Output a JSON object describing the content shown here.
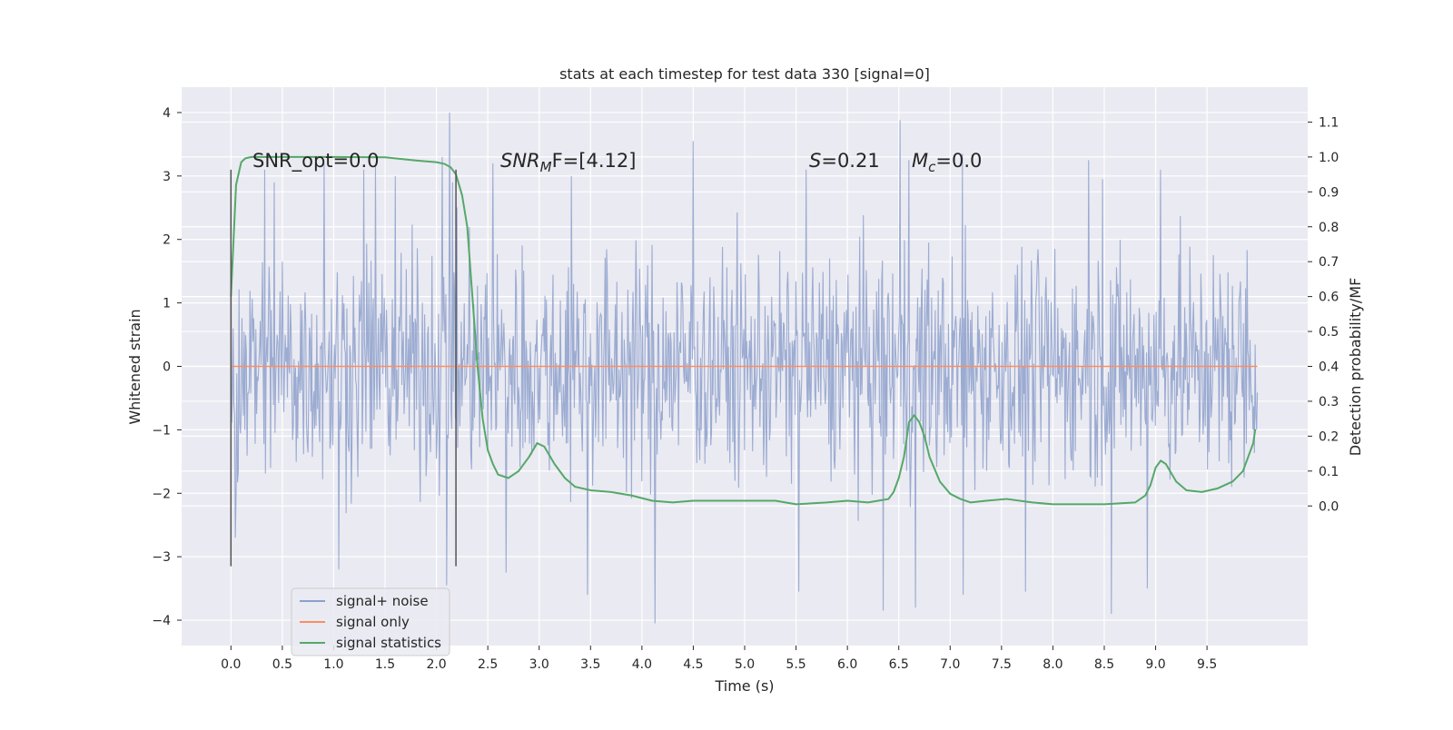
{
  "chart_data": {
    "type": "line",
    "title": "stats at each timestep for test data 330 [signal=0]",
    "xlabel": "Time (s)",
    "ylabel": "Whitened strain",
    "ylabel_right": "Detection probability/MF",
    "xlim": [
      -0.48,
      10.48
    ],
    "ylim": [
      -4.4,
      4.4
    ],
    "ylim_right": [
      -0.4,
      1.2
    ],
    "x_ticks": [
      0.0,
      0.5,
      1.0,
      1.5,
      2.0,
      2.5,
      3.0,
      3.5,
      4.0,
      4.5,
      5.0,
      5.5,
      6.0,
      6.5,
      7.0,
      7.5,
      8.0,
      8.5,
      9.0,
      9.5
    ],
    "x_tick_labels": [
      "0.0",
      "0.5",
      "1.0",
      "1.5",
      "2.0",
      "2.5",
      "3.0",
      "3.5",
      "4.0",
      "4.5",
      "5.0",
      "5.5",
      "6.0",
      "6.5",
      "7.0",
      "7.5",
      "8.0",
      "8.5",
      "9.0",
      "9.5"
    ],
    "y_ticks": [
      -4,
      -3,
      -2,
      -1,
      0,
      1,
      2,
      3,
      4
    ],
    "y_tick_labels": [
      "−4",
      "−3",
      "−2",
      "−1",
      "0",
      "1",
      "2",
      "3",
      "4"
    ],
    "y_right_ticks": [
      0.0,
      0.1,
      0.2,
      0.3,
      0.4,
      0.5,
      0.6,
      0.7,
      0.8,
      0.9,
      1.0,
      1.1
    ],
    "y_right_tick_labels": [
      "0.0",
      "0.1",
      "0.2",
      "0.3",
      "0.4",
      "0.5",
      "0.6",
      "0.7",
      "0.8",
      "0.9",
      "1.0",
      "1.1"
    ],
    "grid": true,
    "legend_position": "lower-left",
    "annotations": {
      "snr_opt": "SNR_opt=0.0",
      "snr_mf_main": "SNR",
      "snr_mf_sub": "M",
      "snr_mf_rest": "F=[4.12]",
      "s_label": "S",
      "s_value": "=0.21",
      "mc_label": "M",
      "mc_sub": "c",
      "mc_value": "=0.0"
    },
    "vertical_markers": [
      {
        "x": 0.0,
        "y_range": [
          -3.15,
          3.1
        ]
      },
      {
        "x": 2.19,
        "y_range": [
          -3.15,
          3.1
        ]
      }
    ],
    "series": [
      {
        "name": "signal+ noise",
        "color": "#8da0cb",
        "axis": "left",
        "style": "noise",
        "x_range": [
          0.0,
          9.99
        ],
        "samples": 1400,
        "core_amplitude": 1.25,
        "peak_times": [
          0.0,
          0.33,
          0.42,
          0.91,
          1.29,
          1.41,
          1.6,
          2.06,
          2.13,
          2.16,
          2.55,
          3.31,
          4.5,
          5.6,
          6.51,
          6.6,
          7.12,
          8.35,
          8.48,
          9.05
        ],
        "peak_values": [
          2.3,
          3.1,
          2.9,
          3.2,
          3.1,
          3.15,
          3.0,
          3.3,
          4.0,
          2.9,
          3.2,
          3.0,
          3.55,
          3.1,
          3.88,
          3.25,
          3.35,
          3.25,
          2.95,
          3.1
        ],
        "trough_times": [
          0.04,
          1.05,
          2.1,
          2.68,
          3.47,
          4.13,
          5.53,
          6.35,
          6.66,
          7.13,
          7.73,
          8.57,
          8.92
        ],
        "trough_values": [
          -2.7,
          -3.2,
          -3.45,
          -3.25,
          -3.6,
          -4.05,
          -3.55,
          -3.85,
          -3.8,
          -3.6,
          -3.55,
          -3.9,
          -3.5
        ]
      },
      {
        "name": "signal only",
        "color": "#fc8d62",
        "axis": "left",
        "x": [
          0.0,
          9.99
        ],
        "y": [
          0.0,
          0.0
        ]
      },
      {
        "name": "signal statistics",
        "color": "#55a868",
        "axis": "right",
        "x": [
          0.0,
          0.05,
          0.1,
          0.14,
          0.2,
          0.3,
          0.5,
          1.0,
          1.5,
          1.8,
          2.0,
          2.08,
          2.14,
          2.19,
          2.25,
          2.3,
          2.35,
          2.4,
          2.45,
          2.5,
          2.55,
          2.6,
          2.7,
          2.8,
          2.9,
          2.98,
          3.05,
          3.15,
          3.25,
          3.35,
          3.5,
          3.7,
          3.9,
          4.1,
          4.3,
          4.5,
          4.8,
          5.0,
          5.3,
          5.5,
          5.8,
          6.0,
          6.2,
          6.3,
          6.4,
          6.45,
          6.5,
          6.55,
          6.6,
          6.65,
          6.7,
          6.75,
          6.8,
          6.9,
          7.0,
          7.1,
          7.2,
          7.35,
          7.55,
          7.8,
          8.0,
          8.5,
          8.8,
          8.9,
          8.95,
          9.0,
          9.05,
          9.1,
          9.2,
          9.3,
          9.45,
          9.6,
          9.75,
          9.85,
          9.9,
          9.95,
          9.97
        ],
        "y": [
          0.6,
          0.92,
          0.985,
          0.996,
          1.0,
          1.0,
          1.0,
          1.0,
          0.999,
          0.99,
          0.985,
          0.98,
          0.97,
          0.95,
          0.89,
          0.8,
          0.6,
          0.4,
          0.25,
          0.16,
          0.12,
          0.09,
          0.08,
          0.1,
          0.14,
          0.18,
          0.17,
          0.12,
          0.08,
          0.055,
          0.045,
          0.04,
          0.03,
          0.015,
          0.01,
          0.015,
          0.015,
          0.015,
          0.015,
          0.005,
          0.01,
          0.015,
          0.01,
          0.015,
          0.02,
          0.04,
          0.08,
          0.14,
          0.24,
          0.26,
          0.24,
          0.2,
          0.14,
          0.07,
          0.035,
          0.02,
          0.01,
          0.015,
          0.02,
          0.01,
          0.005,
          0.005,
          0.01,
          0.03,
          0.06,
          0.11,
          0.13,
          0.12,
          0.07,
          0.045,
          0.04,
          0.05,
          0.07,
          0.1,
          0.14,
          0.18,
          0.22
        ]
      }
    ]
  }
}
